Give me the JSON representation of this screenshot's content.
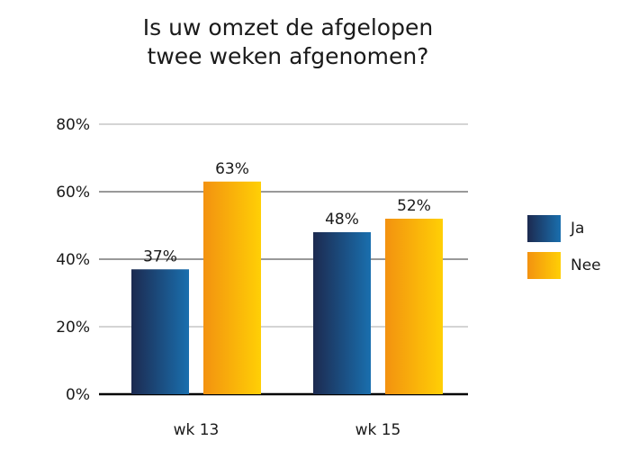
{
  "chart_data": {
    "type": "bar",
    "title_lines": [
      "Is uw omzet de afgelopen",
      "twee weken afgenomen?"
    ],
    "categories": [
      "wk 13",
      "wk 15"
    ],
    "series": [
      {
        "name": "Ja",
        "values": [
          37,
          48
        ],
        "labels": [
          "37%",
          "48%"
        ],
        "color_dark": "#1c2a50",
        "color_light": "#1a6fae"
      },
      {
        "name": "Nee",
        "values": [
          63,
          52
        ],
        "labels": [
          "63%",
          "52%"
        ],
        "color_dark": "#f39210",
        "color_light": "#ffcf05"
      }
    ],
    "ylim": [
      0,
      80
    ],
    "yticks": [
      "0%",
      "20%",
      "40%",
      "60%",
      "80%"
    ],
    "grid": true,
    "legend_position": "right"
  }
}
